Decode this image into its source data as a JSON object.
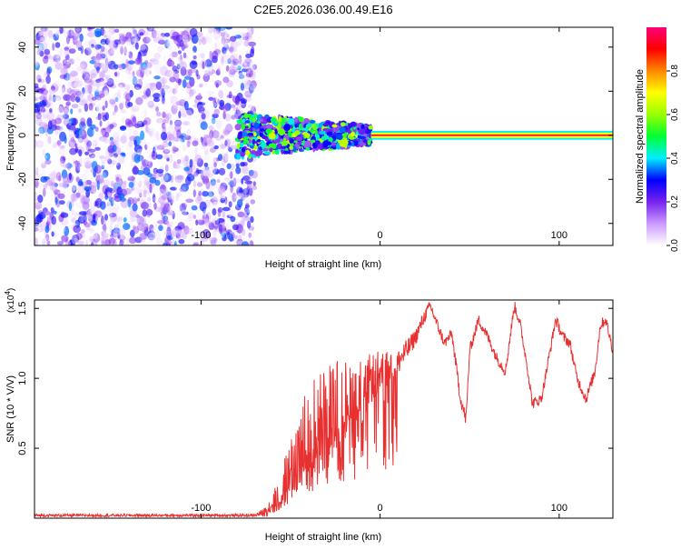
{
  "title": "C2E5.2026.036.00.49.E16",
  "colors": {
    "snr_line": "#e83030",
    "axis": "#000000",
    "background": "#ffffff"
  },
  "chart_data": [
    {
      "type": "heatmap",
      "xlabel": "Height of straight line (km)",
      "ylabel": "Frequency (Hz)",
      "xlim": [
        -193,
        130
      ],
      "ylim": [
        -50,
        49
      ],
      "x_ticks": [
        -100,
        0,
        100
      ],
      "x_tick_labels": [
        "-100",
        "0",
        "100"
      ],
      "y_ticks": [
        -40,
        -20,
        0,
        20,
        40
      ],
      "y_tick_labels": [
        "-40",
        "-20",
        "0",
        "20",
        "40"
      ],
      "colorbar": {
        "label": "Normalized spectral amplitude",
        "range": [
          0,
          1
        ],
        "ticks": [
          0.0,
          0.2,
          0.4,
          0.6,
          0.8
        ],
        "tick_labels": [
          "0.0",
          "0.2",
          "0.4",
          "0.6",
          "0.8"
        ],
        "stops": [
          "#ffffff",
          "#cc99ff",
          "#7722ee",
          "#0000ff",
          "#00eeff",
          "#00ff33",
          "#99ff00",
          "#ffff00",
          "#ff8800",
          "#ff0000",
          "#ff0077"
        ]
      },
      "description_regions": [
        {
          "x_range": [
            -193,
            -70
          ],
          "freq_range": [
            -50,
            49
          ],
          "amplitude": 0.15,
          "kind": "noise"
        },
        {
          "x_range": [
            -80,
            -5
          ],
          "freq_range": [
            -10,
            10
          ],
          "amplitude": 0.4,
          "kind": "scatter"
        },
        {
          "x_range": [
            -5,
            130
          ],
          "freq_range": [
            -2,
            2
          ],
          "amplitude": 0.95,
          "kind": "band"
        }
      ]
    },
    {
      "type": "line",
      "xlabel": "Height of straight line (km)",
      "ylabel": "SNR (10 * V/V)",
      "y_multiplier_label": "(x10",
      "y_multiplier_exp": "4",
      "y_multiplier_close": ")",
      "xlim": [
        -193,
        130
      ],
      "ylim": [
        0,
        1.56
      ],
      "x_ticks": [
        -100,
        0,
        100
      ],
      "x_tick_labels": [
        "-100",
        "0",
        "100"
      ],
      "y_ticks": [
        0.5,
        1.0,
        1.5
      ],
      "y_tick_labels": [
        "0.5",
        "1.0",
        "1.5"
      ],
      "series": [
        {
          "name": "SNR",
          "x": [
            -193,
            -70,
            -65,
            -60,
            -55,
            -50,
            -45,
            -40,
            -35,
            -30,
            -25,
            -20,
            -15,
            -10,
            -5,
            0,
            5,
            10,
            15,
            20,
            25,
            28,
            32,
            36,
            40,
            45,
            48,
            50,
            55,
            60,
            65,
            70,
            75,
            78,
            82,
            85,
            90,
            95,
            98,
            102,
            106,
            110,
            115,
            120,
            123,
            126,
            130
          ],
          "values": [
            0.02,
            0.02,
            0.04,
            0.1,
            0.2,
            0.35,
            0.5,
            0.6,
            0.7,
            0.75,
            0.82,
            0.86,
            0.9,
            0.94,
            1.0,
            1.05,
            1.08,
            1.12,
            1.2,
            1.3,
            1.45,
            1.52,
            1.38,
            1.25,
            1.32,
            0.85,
            0.7,
            1.2,
            1.42,
            1.3,
            1.15,
            1.05,
            1.52,
            1.4,
            1.1,
            0.82,
            0.85,
            1.2,
            1.42,
            1.3,
            1.25,
            1.0,
            0.85,
            1.05,
            1.38,
            1.42,
            1.2
          ],
          "noise_amplitude": [
            0.01,
            0.01,
            0.03,
            0.08,
            0.15,
            0.25,
            0.3,
            0.35,
            0.35,
            0.35,
            0.32,
            0.28,
            0.25,
            0.2,
            0.18,
            0.15,
            0.12,
            0.1,
            0.08,
            0.06,
            0.05,
            0.04,
            0.04,
            0.04,
            0.04,
            0.05,
            0.05,
            0.04,
            0.04,
            0.04,
            0.04,
            0.04,
            0.04,
            0.04,
            0.04,
            0.04,
            0.04,
            0.04,
            0.04,
            0.04,
            0.04,
            0.04,
            0.04,
            0.04,
            0.04,
            0.04,
            0.04
          ]
        }
      ]
    }
  ]
}
